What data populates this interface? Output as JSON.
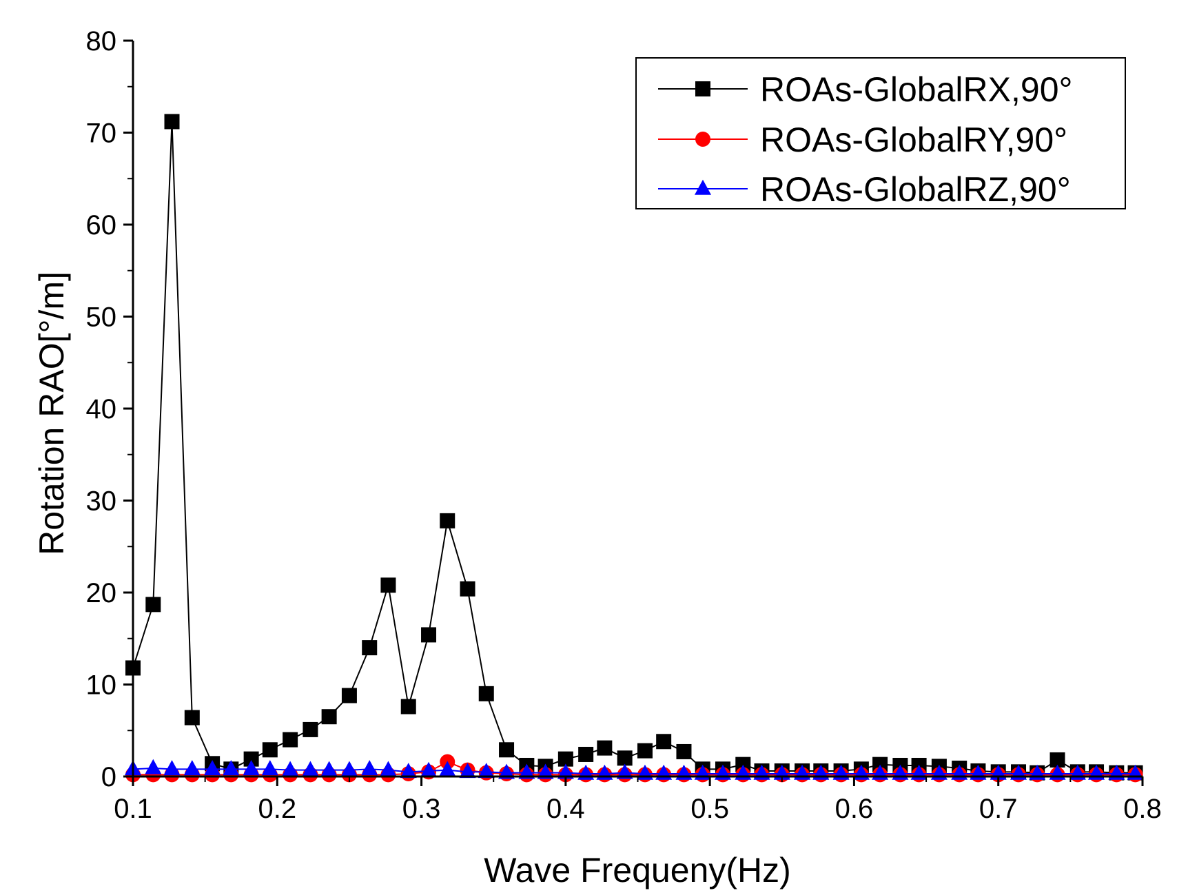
{
  "chart_data": {
    "type": "line",
    "title": "",
    "xlabel": "Wave Frequeny(Hz)",
    "ylabel": "Rotation RAO[°/m]",
    "xlim": [
      0.1,
      0.8
    ],
    "ylim": [
      0,
      80
    ],
    "xticks": [
      0.1,
      0.2,
      0.3,
      0.4,
      0.5,
      0.6,
      0.7,
      0.8
    ],
    "xtick_labels": [
      "0.1",
      "0.2",
      "0.3",
      "0.4",
      "0.5",
      "0.6",
      "0.7",
      "0.8"
    ],
    "yticks": [
      0,
      10,
      20,
      30,
      40,
      50,
      60,
      70,
      80
    ],
    "ytick_labels": [
      "0",
      "10",
      "20",
      "30",
      "40",
      "50",
      "60",
      "70",
      "80"
    ],
    "grid": false,
    "legend_position": "top-right",
    "series": [
      {
        "name": "ROAs-GlobalRX,90°",
        "color": "#000000",
        "marker": "square",
        "x": [
          0.1,
          0.114,
          0.127,
          0.141,
          0.155,
          0.168,
          0.182,
          0.195,
          0.209,
          0.223,
          0.236,
          0.25,
          0.264,
          0.277,
          0.291,
          0.305,
          0.318,
          0.332,
          0.345,
          0.359,
          0.373,
          0.386,
          0.4,
          0.414,
          0.427,
          0.441,
          0.455,
          0.468,
          0.482,
          0.495,
          0.509,
          0.523,
          0.536,
          0.55,
          0.564,
          0.577,
          0.591,
          0.605,
          0.618,
          0.632,
          0.645,
          0.659,
          0.673,
          0.686,
          0.7,
          0.714,
          0.727,
          0.741,
          0.755,
          0.768,
          0.782,
          0.795
        ],
        "y": [
          11.8,
          18.7,
          71.2,
          6.4,
          1.4,
          0.8,
          1.9,
          2.9,
          4.0,
          5.1,
          6.5,
          8.8,
          14.0,
          20.8,
          7.6,
          15.4,
          27.8,
          20.4,
          9.0,
          2.9,
          1.2,
          1.1,
          1.9,
          2.4,
          3.1,
          2.0,
          2.8,
          3.8,
          2.7,
          0.8,
          0.8,
          1.3,
          0.6,
          0.6,
          0.6,
          0.6,
          0.6,
          0.8,
          1.3,
          1.2,
          1.2,
          1.1,
          0.9,
          0.6,
          0.5,
          0.5,
          0.4,
          1.8,
          0.5,
          0.5,
          0.4,
          0.4
        ]
      },
      {
        "name": "ROAs-GlobalRY,90°",
        "color": "#ff0000",
        "marker": "circle",
        "x": [
          0.1,
          0.114,
          0.127,
          0.141,
          0.155,
          0.168,
          0.182,
          0.195,
          0.209,
          0.223,
          0.236,
          0.25,
          0.264,
          0.277,
          0.291,
          0.305,
          0.318,
          0.332,
          0.345,
          0.359,
          0.373,
          0.386,
          0.4,
          0.414,
          0.427,
          0.441,
          0.455,
          0.468,
          0.482,
          0.495,
          0.509,
          0.523,
          0.536,
          0.55,
          0.564,
          0.577,
          0.591,
          0.605,
          0.618,
          0.632,
          0.645,
          0.659,
          0.673,
          0.686,
          0.7,
          0.714,
          0.727,
          0.741,
          0.755,
          0.768,
          0.782,
          0.795
        ],
        "y": [
          0.2,
          0.2,
          0.2,
          0.2,
          0.2,
          0.2,
          0.2,
          0.2,
          0.2,
          0.2,
          0.2,
          0.2,
          0.2,
          0.2,
          0.3,
          0.5,
          1.6,
          0.7,
          0.4,
          0.3,
          0.2,
          0.2,
          0.2,
          0.2,
          0.2,
          0.2,
          0.2,
          0.2,
          0.2,
          0.2,
          0.2,
          0.2,
          0.2,
          0.2,
          0.2,
          0.2,
          0.2,
          0.2,
          0.2,
          0.2,
          0.2,
          0.2,
          0.2,
          0.2,
          0.2,
          0.2,
          0.2,
          0.2,
          0.2,
          0.2,
          0.2,
          0.2
        ]
      },
      {
        "name": "ROAs-GlobalRZ,90°",
        "color": "#0000ff",
        "marker": "triangle",
        "x": [
          0.1,
          0.114,
          0.127,
          0.141,
          0.155,
          0.168,
          0.182,
          0.195,
          0.209,
          0.223,
          0.236,
          0.25,
          0.264,
          0.277,
          0.291,
          0.305,
          0.318,
          0.332,
          0.345,
          0.359,
          0.373,
          0.386,
          0.4,
          0.414,
          0.427,
          0.441,
          0.455,
          0.468,
          0.482,
          0.495,
          0.509,
          0.523,
          0.536,
          0.55,
          0.564,
          0.577,
          0.591,
          0.605,
          0.618,
          0.632,
          0.645,
          0.659,
          0.673,
          0.686,
          0.7,
          0.714,
          0.727,
          0.741,
          0.755,
          0.768,
          0.782,
          0.795
        ],
        "y": [
          0.8,
          0.9,
          0.8,
          0.8,
          0.8,
          0.8,
          0.8,
          0.8,
          0.7,
          0.7,
          0.7,
          0.7,
          0.8,
          0.7,
          0.5,
          0.6,
          0.7,
          0.5,
          0.5,
          0.4,
          0.4,
          0.4,
          0.4,
          0.3,
          0.3,
          0.4,
          0.3,
          0.3,
          0.3,
          0.3,
          0.3,
          0.3,
          0.3,
          0.3,
          0.3,
          0.3,
          0.3,
          0.3,
          0.3,
          0.3,
          0.3,
          0.3,
          0.3,
          0.3,
          0.3,
          0.3,
          0.3,
          0.3,
          0.3,
          0.3,
          0.3,
          0.3
        ]
      }
    ]
  }
}
